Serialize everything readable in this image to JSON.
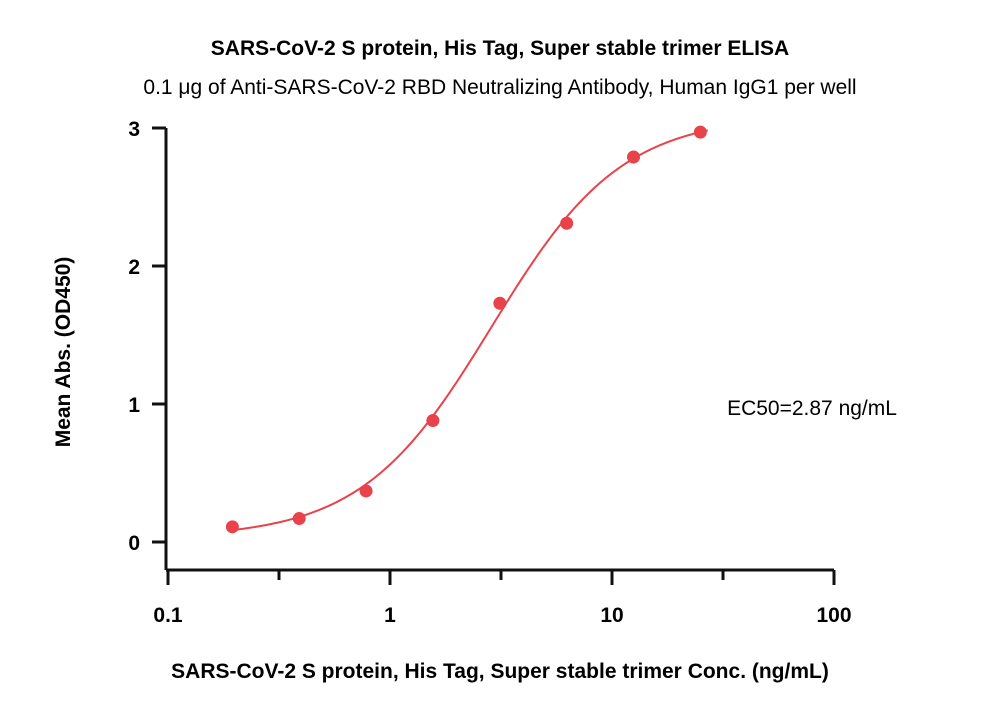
{
  "chart_data": {
    "type": "scatter",
    "title": "SARS-CoV-2 S protein, His Tag, Super stable trimer ELISA",
    "subtitle": "0.1 μg of Anti-SARS-CoV-2 RBD Neutralizing Antibody, Human IgG1 per well",
    "xlabel": "SARS-CoV-2 S protein, His Tag, Super stable trimer Conc. (ng/mL)",
    "ylabel": "Mean Abs. (OD450)",
    "x_scale": "log",
    "xlim": [
      0.1,
      100
    ],
    "ylim": [
      0,
      3
    ],
    "x_ticks": [
      {
        "value": 0.1,
        "label": "0.1"
      },
      {
        "value": 1,
        "label": "1"
      },
      {
        "value": 10,
        "label": "10"
      },
      {
        "value": 100,
        "label": "100"
      }
    ],
    "y_ticks": [
      {
        "value": 0,
        "label": "0"
      },
      {
        "value": 1,
        "label": "1"
      },
      {
        "value": 2,
        "label": "2"
      },
      {
        "value": 3,
        "label": "3"
      }
    ],
    "grid": false,
    "series": [
      {
        "x": [
          0.195,
          0.39,
          0.78,
          1.56,
          3.125,
          6.25,
          12.5,
          25
        ],
        "y": [
          0.11,
          0.17,
          0.37,
          0.88,
          1.73,
          2.31,
          2.79,
          2.97
        ],
        "color": "#e8424a",
        "fit": "4PL",
        "fit_params": {
          "bottom": 0.03,
          "top": 3.09,
          "ec50": 2.87,
          "hill": 1.48
        },
        "fit_range": [
          0.19,
          27
        ]
      }
    ],
    "annotations": [
      {
        "text": "EC50=2.87 ng/mL"
      }
    ]
  }
}
